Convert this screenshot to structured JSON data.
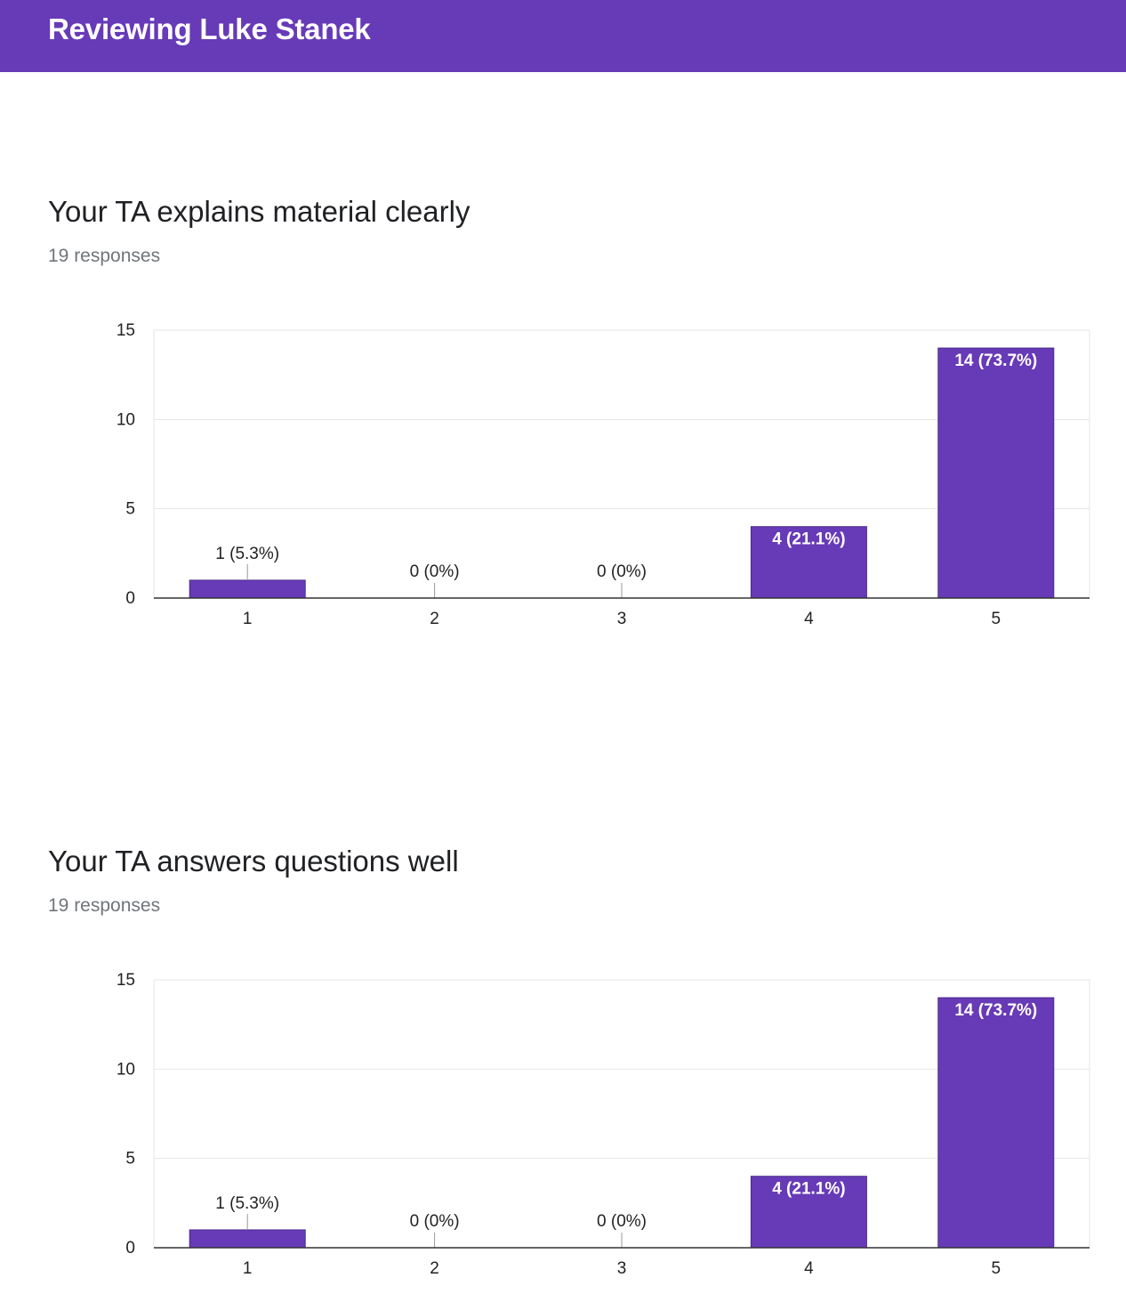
{
  "header": {
    "title": "Reviewing Luke Stanek"
  },
  "accent_color": "#673ab7",
  "questions": [
    {
      "title": "Your TA explains material clearly",
      "responses": "19 responses"
    },
    {
      "title": "Your TA answers questions well",
      "responses": "19 responses"
    }
  ],
  "chart_data": [
    {
      "type": "bar",
      "categories": [
        "1",
        "2",
        "3",
        "4",
        "5"
      ],
      "values": [
        1,
        0,
        0,
        4,
        14
      ],
      "data_labels": [
        "1 (5.3%)",
        "0 (0%)",
        "0 (0%)",
        "4 (21.1%)",
        "14 (73.7%)"
      ],
      "ylim": [
        0,
        15
      ],
      "yticks": [
        0,
        5,
        10,
        15
      ],
      "grid": true,
      "bar_color": "#673ab7"
    },
    {
      "type": "bar",
      "categories": [
        "1",
        "2",
        "3",
        "4",
        "5"
      ],
      "values": [
        1,
        0,
        0,
        4,
        14
      ],
      "data_labels": [
        "1 (5.3%)",
        "0 (0%)",
        "0 (0%)",
        "4 (21.1%)",
        "14 (73.7%)"
      ],
      "ylim": [
        0,
        15
      ],
      "yticks": [
        0,
        5,
        10,
        15
      ],
      "grid": true,
      "bar_color": "#673ab7"
    }
  ]
}
